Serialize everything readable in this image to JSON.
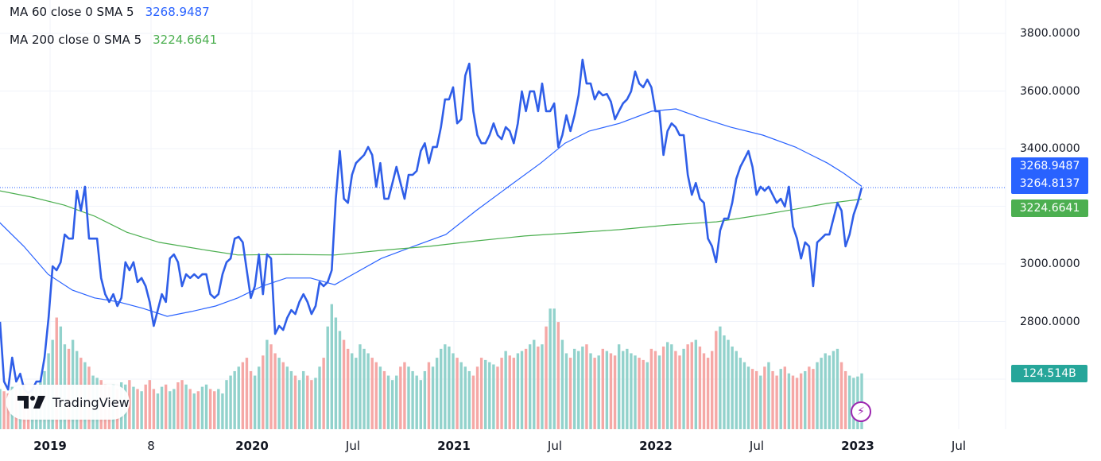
{
  "legend": [
    {
      "label": "MA 60 close 0 SMA 5",
      "value": "3268.9487",
      "color": "#2962ff"
    },
    {
      "label": "MA 200 close 0 SMA 5",
      "value": "3224.6641",
      "color": "#4caf50"
    }
  ],
  "price_tags": [
    {
      "value": "3268.9487",
      "color": "#2962ff"
    },
    {
      "value": "3264.8137",
      "color": "#2962ff"
    },
    {
      "value": "3224.6641",
      "color": "#4caf50"
    }
  ],
  "volume_tag": {
    "value": "124.514B",
    "color": "#26a69a"
  },
  "branding": {
    "logo_text": "TradingView"
  },
  "chart_data": {
    "type": "line",
    "title": "",
    "ylim": [
      2600,
      3850
    ],
    "yticks": [
      "3800.0000",
      "3600.0000",
      "3400.0000",
      "3000.0000",
      "2800.0000"
    ],
    "ytick_values": [
      3800,
      3600,
      3400,
      3000,
      2800
    ],
    "xticks": [
      {
        "label": "2019",
        "t": 2019.0,
        "major": true
      },
      {
        "label": "8",
        "t": 2019.5,
        "major": false
      },
      {
        "label": "2020",
        "t": 2020.0,
        "major": true
      },
      {
        "label": "Jul",
        "t": 2020.5,
        "major": false
      },
      {
        "label": "2021",
        "t": 2021.0,
        "major": true
      },
      {
        "label": "Jul",
        "t": 2021.5,
        "major": false
      },
      {
        "label": "2022",
        "t": 2022.0,
        "major": true
      },
      {
        "label": "Jul",
        "t": 2022.5,
        "major": false
      },
      {
        "label": "2023",
        "t": 2023.0,
        "major": true
      },
      {
        "label": "Jul",
        "t": 2023.5,
        "major": false
      }
    ],
    "xlim": [
      2018.752,
      2023.73
    ],
    "last_price": 3264.8137,
    "price": {
      "name": "Close (weekly)",
      "start": 2018.752,
      "end": 2023.02,
      "color": "#2f5ee8",
      "values": [
        2799,
        2592,
        2564,
        2675,
        2592,
        2619,
        2564,
        2551,
        2564,
        2592,
        2592,
        2675,
        2813,
        2992,
        2978,
        3006,
        3102,
        3088,
        3088,
        3254,
        3185,
        3268,
        3088,
        3088,
        3088,
        2951,
        2895,
        2868,
        2895,
        2854,
        2882,
        3006,
        2978,
        3006,
        2937,
        2951,
        2923,
        2868,
        2785,
        2840,
        2895,
        2868,
        3019,
        3033,
        3006,
        2923,
        2964,
        2951,
        2964,
        2951,
        2964,
        2964,
        2895,
        2882,
        2895,
        2964,
        3006,
        3019,
        3088,
        3094,
        3075,
        2978,
        2882,
        2923,
        3033,
        2895,
        3033,
        3019,
        2757,
        2785,
        2771,
        2813,
        2840,
        2826,
        2868,
        2895,
        2868,
        2826,
        2854,
        2937,
        2923,
        2937,
        2978,
        3226,
        3392,
        3226,
        3212,
        3309,
        3350,
        3364,
        3378,
        3406,
        3378,
        3268,
        3350,
        3226,
        3226,
        3281,
        3337,
        3281,
        3226,
        3309,
        3309,
        3323,
        3392,
        3419,
        3350,
        3406,
        3406,
        3475,
        3571,
        3571,
        3613,
        3488,
        3502,
        3654,
        3695,
        3530,
        3447,
        3419,
        3419,
        3447,
        3488,
        3447,
        3433,
        3475,
        3461,
        3419,
        3488,
        3599,
        3530,
        3599,
        3599,
        3530,
        3626,
        3530,
        3530,
        3557,
        3406,
        3447,
        3516,
        3461,
        3516,
        3585,
        3709,
        3626,
        3626,
        3571,
        3599,
        3585,
        3590,
        3563,
        3502,
        3530,
        3557,
        3571,
        3599,
        3668,
        3626,
        3613,
        3640,
        3613,
        3530,
        3530,
        3378,
        3461,
        3488,
        3475,
        3447,
        3447,
        3309,
        3240,
        3281,
        3226,
        3212,
        3088,
        3061,
        3006,
        3116,
        3157,
        3157,
        3212,
        3295,
        3337,
        3364,
        3392,
        3337,
        3240,
        3268,
        3254,
        3268,
        3240,
        3212,
        3226,
        3199,
        3268,
        3130,
        3088,
        3019,
        3075,
        3061,
        2923,
        3075,
        3088,
        3102,
        3102,
        3157,
        3212,
        3185,
        3061,
        3102,
        3171,
        3212,
        3265
      ]
    },
    "series": [
      {
        "name": "MA 60",
        "color": "#2962ff",
        "points": [
          [
            2018.75,
            3144
          ],
          [
            2018.87,
            3061
          ],
          [
            2018.99,
            2964
          ],
          [
            2019.11,
            2909
          ],
          [
            2019.22,
            2882
          ],
          [
            2019.34,
            2868
          ],
          [
            2019.46,
            2846
          ],
          [
            2019.58,
            2818
          ],
          [
            2019.7,
            2835
          ],
          [
            2019.82,
            2854
          ],
          [
            2019.93,
            2882
          ],
          [
            2020.05,
            2923
          ],
          [
            2020.17,
            2951
          ],
          [
            2020.29,
            2951
          ],
          [
            2020.41,
            2928
          ],
          [
            2020.48,
            2956
          ],
          [
            2020.64,
            3019
          ],
          [
            2020.8,
            3061
          ],
          [
            2020.96,
            3102
          ],
          [
            2021.11,
            3185
          ],
          [
            2021.27,
            3268
          ],
          [
            2021.43,
            3350
          ],
          [
            2021.55,
            3419
          ],
          [
            2021.67,
            3461
          ],
          [
            2021.82,
            3488
          ],
          [
            2021.98,
            3530
          ],
          [
            2022.1,
            3538
          ],
          [
            2022.22,
            3508
          ],
          [
            2022.37,
            3475
          ],
          [
            2022.53,
            3447
          ],
          [
            2022.69,
            3406
          ],
          [
            2022.85,
            3350
          ],
          [
            2022.93,
            3315
          ],
          [
            2023.02,
            3269
          ]
        ]
      },
      {
        "name": "MA 200",
        "color": "#4caf50",
        "points": [
          [
            2018.75,
            3254
          ],
          [
            2018.91,
            3232
          ],
          [
            2019.07,
            3204
          ],
          [
            2019.22,
            3166
          ],
          [
            2019.38,
            3110
          ],
          [
            2019.54,
            3075
          ],
          [
            2019.78,
            3047
          ],
          [
            2019.93,
            3031
          ],
          [
            2020.17,
            3033
          ],
          [
            2020.41,
            3031
          ],
          [
            2020.64,
            3047
          ],
          [
            2020.88,
            3061
          ],
          [
            2021.11,
            3080
          ],
          [
            2021.35,
            3097
          ],
          [
            2021.59,
            3108
          ],
          [
            2021.82,
            3119
          ],
          [
            2022.06,
            3135
          ],
          [
            2022.3,
            3146
          ],
          [
            2022.53,
            3171
          ],
          [
            2022.69,
            3190
          ],
          [
            2022.85,
            3210
          ],
          [
            2023.02,
            3225
          ]
        ]
      }
    ],
    "volume": {
      "unit": "B",
      "up_color": "#92d2cc",
      "down_color": "#f5a8a6",
      "values": [
        90,
        85,
        80,
        95,
        88,
        92,
        100,
        85,
        90,
        95,
        110,
        130,
        170,
        200,
        250,
        230,
        190,
        180,
        200,
        175,
        160,
        150,
        140,
        120,
        115,
        110,
        100,
        95,
        100,
        90,
        105,
        100,
        110,
        95,
        90,
        85,
        100,
        110,
        90,
        80,
        95,
        100,
        85,
        90,
        105,
        110,
        100,
        90,
        80,
        85,
        95,
        100,
        90,
        85,
        90,
        80,
        110,
        120,
        130,
        140,
        150,
        160,
        130,
        120,
        140,
        165,
        200,
        190,
        170,
        160,
        150,
        140,
        130,
        120,
        110,
        130,
        120,
        110,
        115,
        140,
        160,
        230,
        280,
        250,
        220,
        200,
        180,
        170,
        160,
        190,
        180,
        170,
        160,
        150,
        140,
        130,
        120,
        110,
        120,
        140,
        150,
        140,
        130,
        120,
        110,
        130,
        150,
        140,
        160,
        180,
        190,
        185,
        170,
        160,
        150,
        140,
        130,
        120,
        140,
        160,
        155,
        150,
        145,
        140,
        160,
        175,
        165,
        160,
        170,
        175,
        180,
        190,
        200,
        185,
        190,
        230,
        270,
        270,
        240,
        200,
        170,
        160,
        180,
        175,
        185,
        190,
        170,
        160,
        165,
        180,
        175,
        170,
        165,
        190,
        175,
        180,
        170,
        165,
        160,
        155,
        150,
        180,
        175,
        165,
        185,
        195,
        190,
        175,
        165,
        180,
        190,
        195,
        200,
        185,
        170,
        160,
        175,
        220,
        230,
        210,
        200,
        185,
        175,
        160,
        150,
        140,
        135,
        130,
        120,
        140,
        150,
        130,
        120,
        135,
        140,
        125,
        120,
        115,
        125,
        130,
        140,
        135,
        150,
        160,
        170,
        165,
        175,
        180,
        150,
        130,
        120,
        115,
        118,
        125
      ]
    }
  }
}
